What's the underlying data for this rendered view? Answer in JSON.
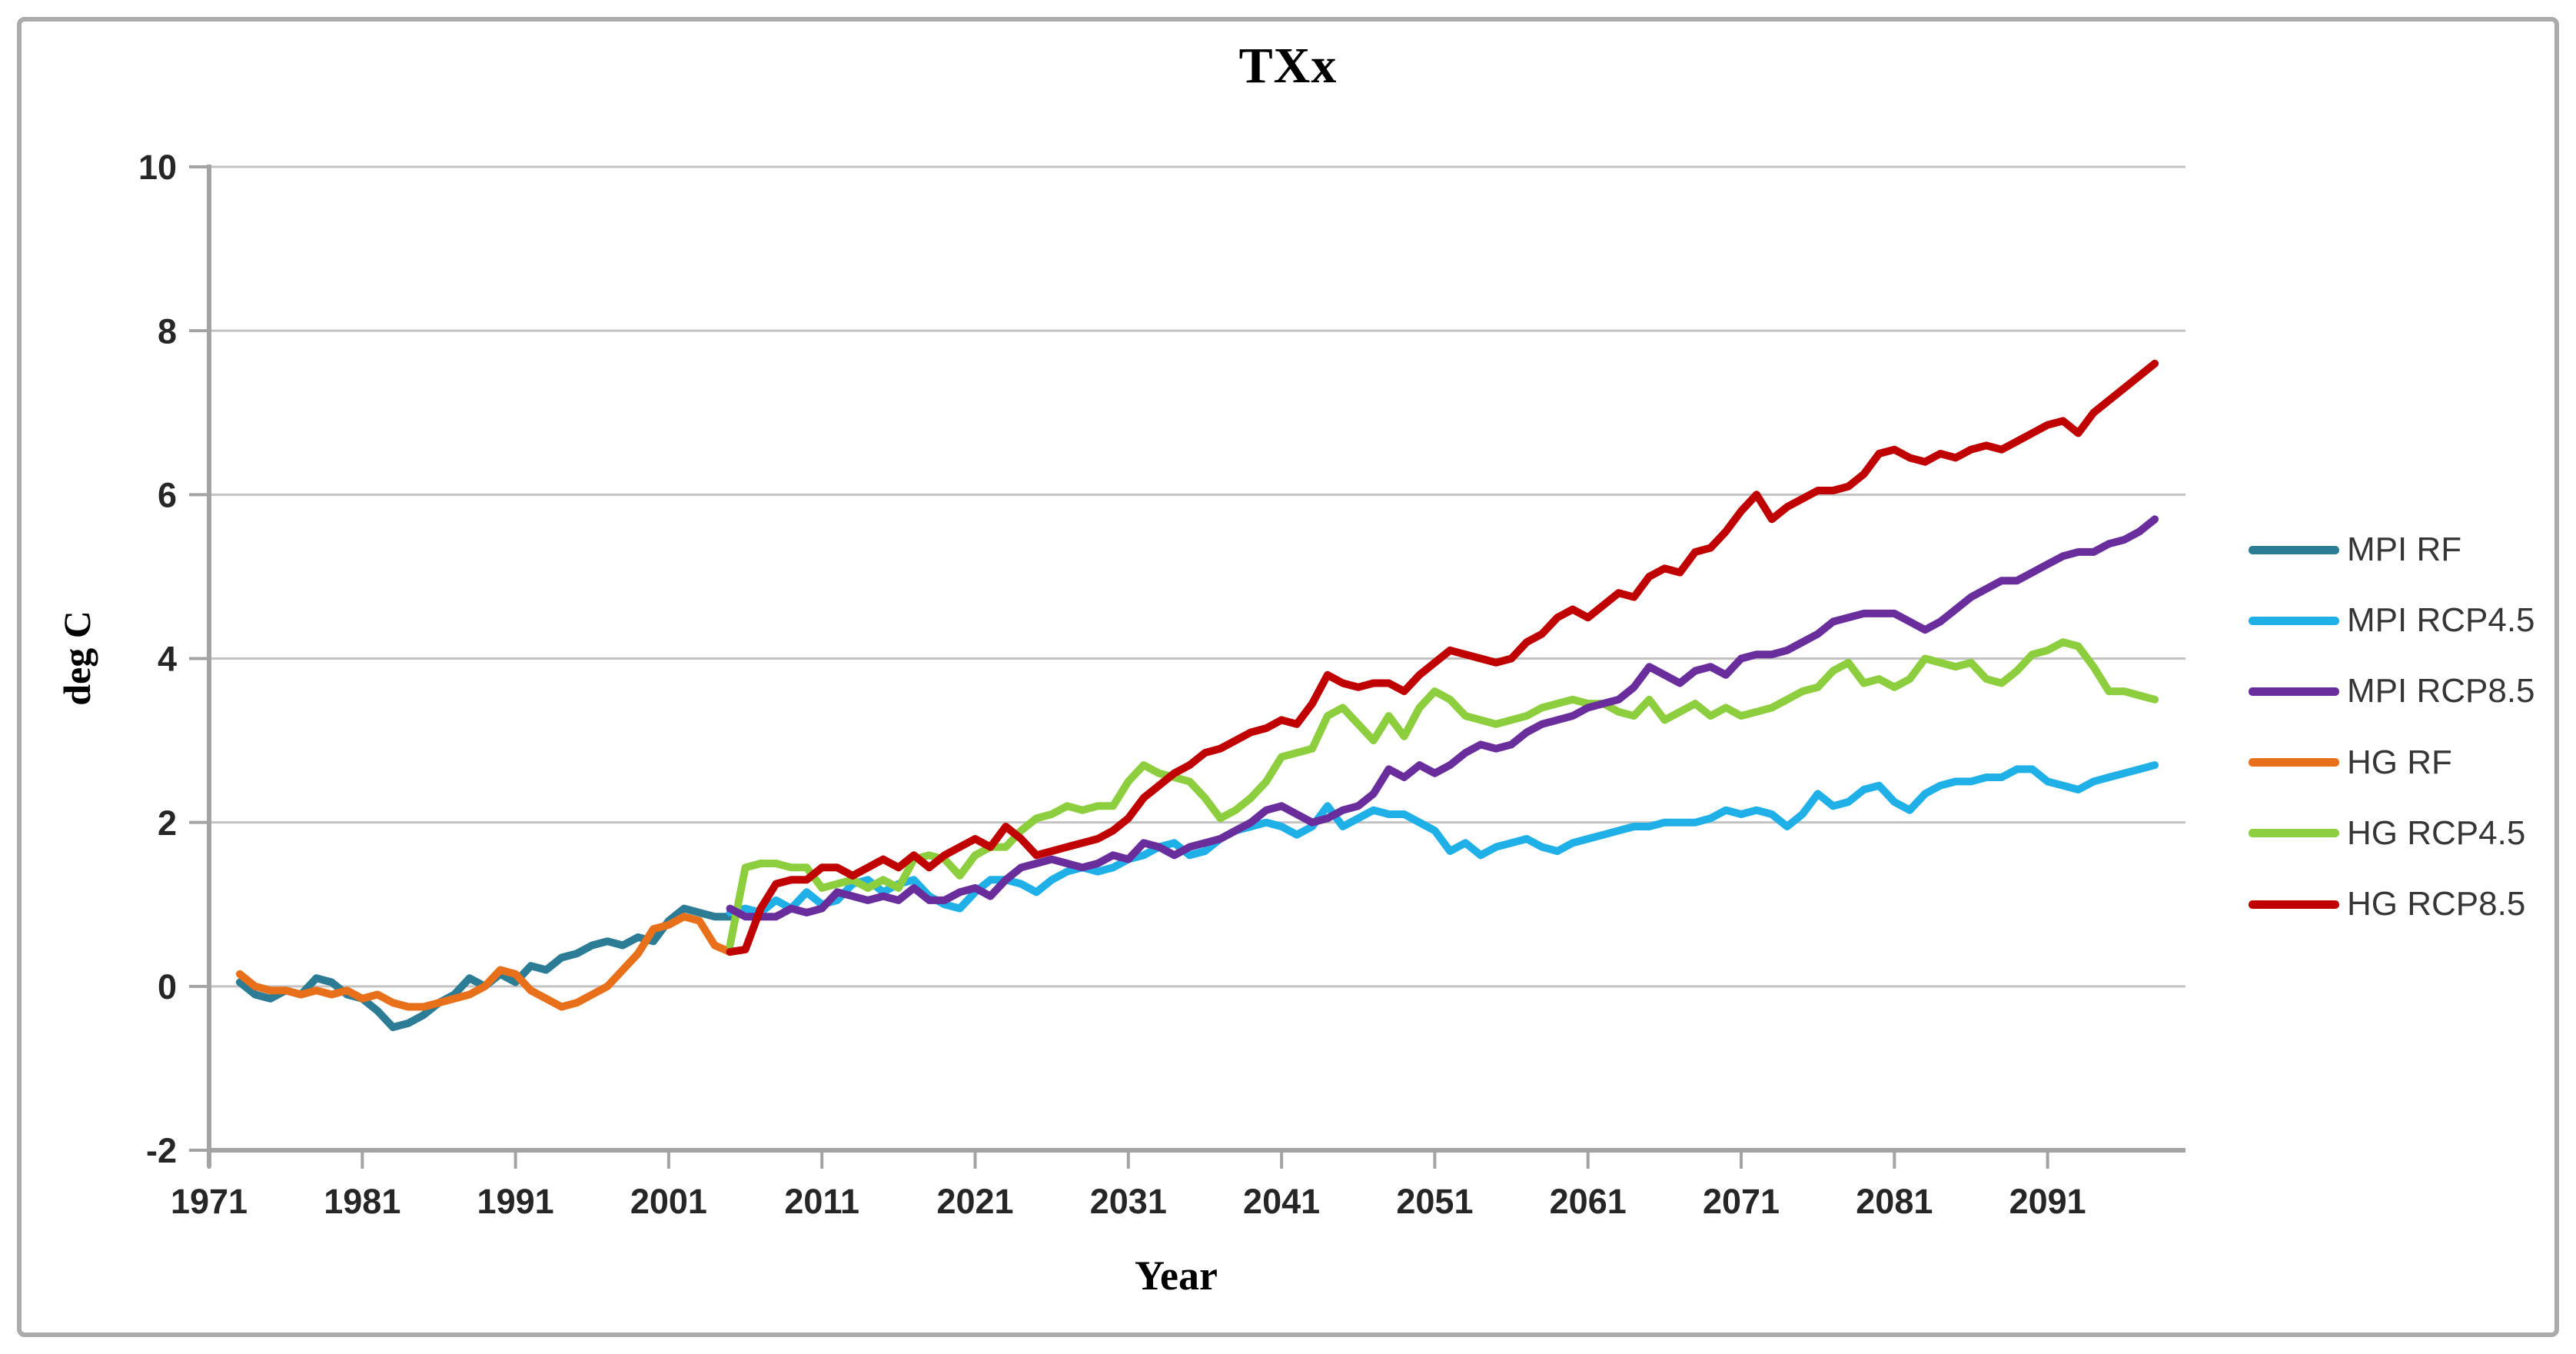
{
  "chart_data": {
    "type": "line",
    "title": "TXx",
    "xlabel": "Year",
    "ylabel": "deg C",
    "xlim": [
      1971,
      2100
    ],
    "ylim": [
      -2,
      10
    ],
    "x_ticks": [
      1971,
      1981,
      1991,
      2001,
      2011,
      2021,
      2031,
      2041,
      2051,
      2061,
      2071,
      2081,
      2091
    ],
    "y_ticks": [
      -2,
      0,
      2,
      4,
      6,
      8,
      10
    ],
    "grid": "horizontal-on",
    "legend_position": "right",
    "series": [
      {
        "name": "MPI RF",
        "color": "#2B7C94",
        "start_year": 1973,
        "values": [
          0.05,
          -0.1,
          -0.15,
          -0.05,
          -0.1,
          0.1,
          0.05,
          -0.1,
          -0.15,
          -0.3,
          -0.5,
          -0.45,
          -0.35,
          -0.2,
          -0.1,
          0.1,
          0.0,
          0.15,
          0.05,
          0.25,
          0.2,
          0.35,
          0.4,
          0.5,
          0.55,
          0.5,
          0.6,
          0.55,
          0.8,
          0.95,
          0.9,
          0.85,
          0.85
        ]
      },
      {
        "name": "MPI RCP4.5",
        "color": "#1FB0E8",
        "start_year": 2005,
        "values": [
          0.9,
          0.95,
          0.9,
          1.05,
          0.95,
          1.15,
          1.0,
          1.05,
          1.25,
          1.3,
          1.15,
          1.25,
          1.3,
          1.1,
          1.0,
          0.95,
          1.15,
          1.3,
          1.3,
          1.25,
          1.15,
          1.3,
          1.4,
          1.45,
          1.4,
          1.45,
          1.55,
          1.6,
          1.7,
          1.75,
          1.6,
          1.65,
          1.8,
          1.9,
          1.95,
          2.0,
          1.95,
          1.85,
          1.95,
          2.2,
          1.95,
          2.05,
          2.15,
          2.1,
          2.1,
          2.0,
          1.9,
          1.65,
          1.75,
          1.6,
          1.7,
          1.75,
          1.8,
          1.7,
          1.65,
          1.75,
          1.8,
          1.85,
          1.9,
          1.95,
          1.95,
          2.0,
          2.0,
          2.0,
          2.05,
          2.15,
          2.1,
          2.15,
          2.1,
          1.95,
          2.1,
          2.35,
          2.2,
          2.25,
          2.4,
          2.45,
          2.25,
          2.15,
          2.35,
          2.45,
          2.5,
          2.5,
          2.55,
          2.55,
          2.65,
          2.65,
          2.5,
          2.45,
          2.4,
          2.5,
          2.55,
          2.6,
          2.65,
          2.7
        ]
      },
      {
        "name": "MPI RCP8.5",
        "color": "#6A2D9C",
        "start_year": 2005,
        "values": [
          0.95,
          0.85,
          0.85,
          0.85,
          0.95,
          0.9,
          0.95,
          1.15,
          1.1,
          1.05,
          1.1,
          1.05,
          1.2,
          1.05,
          1.05,
          1.15,
          1.2,
          1.1,
          1.3,
          1.45,
          1.5,
          1.55,
          1.5,
          1.45,
          1.5,
          1.6,
          1.55,
          1.75,
          1.7,
          1.6,
          1.7,
          1.75,
          1.8,
          1.9,
          2.0,
          2.15,
          2.2,
          2.1,
          2.0,
          2.05,
          2.15,
          2.2,
          2.35,
          2.65,
          2.55,
          2.7,
          2.6,
          2.7,
          2.85,
          2.95,
          2.9,
          2.95,
          3.1,
          3.2,
          3.25,
          3.3,
          3.4,
          3.45,
          3.5,
          3.65,
          3.9,
          3.8,
          3.7,
          3.85,
          3.9,
          3.8,
          4.0,
          4.05,
          4.05,
          4.1,
          4.2,
          4.3,
          4.45,
          4.5,
          4.55,
          4.55,
          4.55,
          4.45,
          4.35,
          4.45,
          4.6,
          4.75,
          4.85,
          4.95,
          4.95,
          5.05,
          5.15,
          5.25,
          5.3,
          5.3,
          5.4,
          5.45,
          5.55,
          5.7
        ]
      },
      {
        "name": "HG RF",
        "color": "#E8701A",
        "start_year": 1973,
        "values": [
          0.15,
          0.0,
          -0.05,
          -0.05,
          -0.1,
          -0.05,
          -0.1,
          -0.05,
          -0.15,
          -0.1,
          -0.2,
          -0.25,
          -0.25,
          -0.2,
          -0.15,
          -0.1,
          0.0,
          0.2,
          0.15,
          -0.05,
          -0.15,
          -0.25,
          -0.2,
          -0.1,
          0.0,
          0.2,
          0.4,
          0.7,
          0.75,
          0.85,
          0.8,
          0.5,
          0.42
        ]
      },
      {
        "name": "HG RCP4.5",
        "color": "#8DCE3E",
        "start_year": 2005,
        "values": [
          0.5,
          1.45,
          1.5,
          1.5,
          1.45,
          1.45,
          1.2,
          1.25,
          1.3,
          1.2,
          1.3,
          1.2,
          1.55,
          1.6,
          1.55,
          1.35,
          1.6,
          1.7,
          1.7,
          1.9,
          2.05,
          2.1,
          2.2,
          2.15,
          2.2,
          2.2,
          2.5,
          2.7,
          2.6,
          2.55,
          2.5,
          2.3,
          2.05,
          2.15,
          2.3,
          2.5,
          2.8,
          2.85,
          2.9,
          3.3,
          3.4,
          3.2,
          3.0,
          3.3,
          3.05,
          3.4,
          3.6,
          3.5,
          3.3,
          3.25,
          3.2,
          3.25,
          3.3,
          3.4,
          3.45,
          3.5,
          3.45,
          3.45,
          3.35,
          3.3,
          3.5,
          3.25,
          3.35,
          3.45,
          3.3,
          3.4,
          3.3,
          3.35,
          3.4,
          3.5,
          3.6,
          3.65,
          3.85,
          3.95,
          3.7,
          3.75,
          3.65,
          3.75,
          4.0,
          3.95,
          3.9,
          3.95,
          3.75,
          3.7,
          3.85,
          4.05,
          4.1,
          4.2,
          4.15,
          3.9,
          3.6,
          3.6,
          3.55,
          3.5
        ]
      },
      {
        "name": "HG RCP8.5",
        "color": "#C00000",
        "start_year": 2005,
        "values": [
          0.42,
          0.45,
          0.95,
          1.25,
          1.3,
          1.3,
          1.45,
          1.45,
          1.35,
          1.45,
          1.55,
          1.45,
          1.6,
          1.45,
          1.6,
          1.7,
          1.8,
          1.7,
          1.95,
          1.8,
          1.6,
          1.65,
          1.7,
          1.75,
          1.8,
          1.9,
          2.05,
          2.3,
          2.45,
          2.6,
          2.7,
          2.85,
          2.9,
          3.0,
          3.1,
          3.15,
          3.25,
          3.2,
          3.45,
          3.8,
          3.7,
          3.65,
          3.7,
          3.7,
          3.6,
          3.8,
          3.95,
          4.1,
          4.05,
          4.0,
          3.95,
          4.0,
          4.2,
          4.3,
          4.5,
          4.6,
          4.5,
          4.65,
          4.8,
          4.75,
          5.0,
          5.1,
          5.05,
          5.3,
          5.35,
          5.55,
          5.8,
          6.0,
          5.7,
          5.85,
          5.95,
          6.05,
          6.05,
          6.1,
          6.25,
          6.5,
          6.55,
          6.45,
          6.4,
          6.5,
          6.45,
          6.55,
          6.6,
          6.55,
          6.65,
          6.75,
          6.85,
          6.9,
          6.75,
          7.0,
          7.15,
          7.3,
          7.45,
          7.6
        ]
      }
    ]
  }
}
